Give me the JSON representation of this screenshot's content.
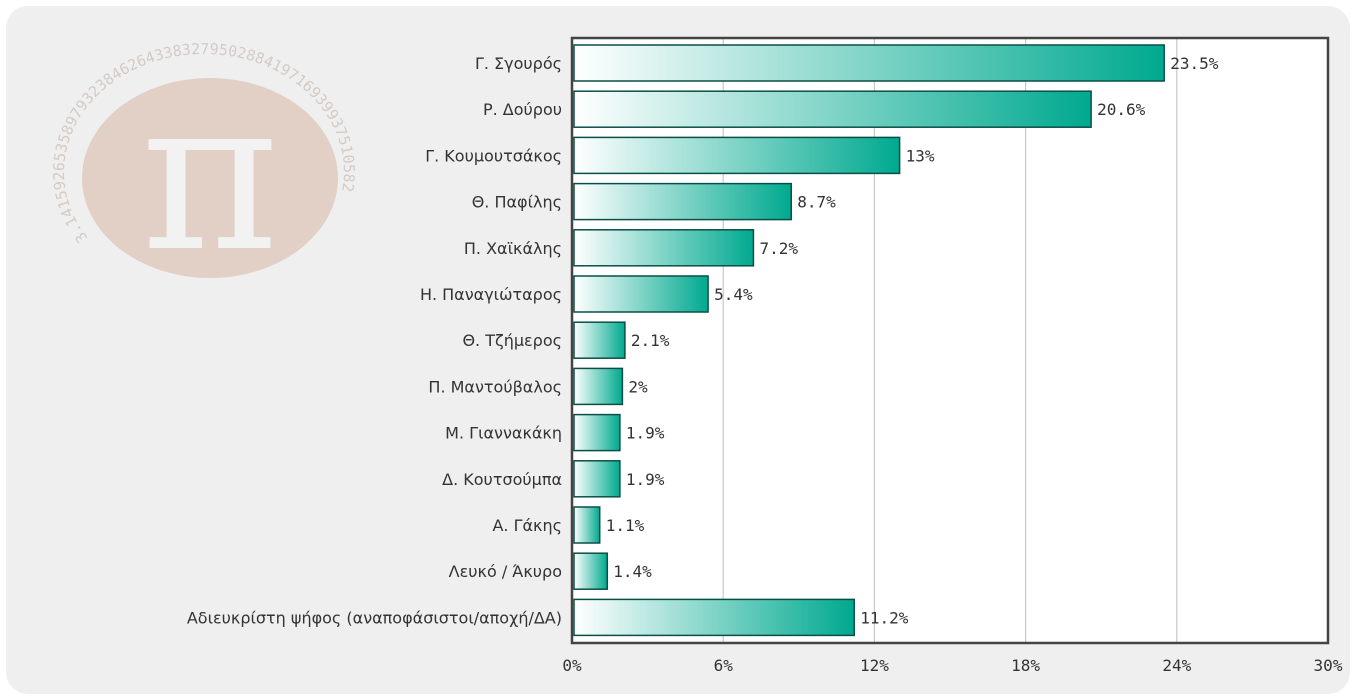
{
  "chart_data": {
    "type": "bar",
    "orientation": "horizontal",
    "categories": [
      "Γ. Σγουρός",
      "Ρ. Δούρου",
      "Γ. Κουμουτσάκος",
      "Θ. Παφίλης",
      "Π. Χαϊκάλης",
      "Η. Παναγιώταρος",
      "Θ. Τζήμερος",
      "Π. Μαντούβαλος",
      "Μ. Γιαννακάκη",
      "Δ. Κουτσούμπα",
      "Α. Γάκης",
      "Λευκό / Άκυρο",
      "Αδιευκρίστη ψήφος (αναποφάσιστοι/αποχή/ΔΑ)"
    ],
    "values": [
      23.5,
      20.6,
      13,
      8.7,
      7.2,
      5.4,
      2.1,
      2,
      1.9,
      1.9,
      1.1,
      1.4,
      11.2
    ],
    "value_labels": [
      "23.5%",
      "20.6%",
      "13%",
      "8.7%",
      "7.2%",
      "5.4%",
      "2.1%",
      "2%",
      "1.9%",
      "1.9%",
      "1.1%",
      "1.4%",
      "11.2%"
    ],
    "xticks": [
      0,
      6,
      12,
      18,
      24,
      30
    ],
    "xtick_labels": [
      "0%",
      "6%",
      "12%",
      "18%",
      "24%",
      "30%"
    ],
    "xlim": [
      0,
      30
    ],
    "grid": "vertical",
    "bar_gradient": [
      "#ffffff",
      "#00a98f"
    ],
    "title": "",
    "xlabel": "",
    "ylabel": ""
  },
  "colors": {
    "panel_background": "#efefef",
    "plot_background": "#ffffff",
    "bar_start": "#ffffff",
    "bar_end": "#00a98f",
    "bar_border": "#0a4f47",
    "axis": "#444444",
    "grid": "#c8c8c8"
  }
}
